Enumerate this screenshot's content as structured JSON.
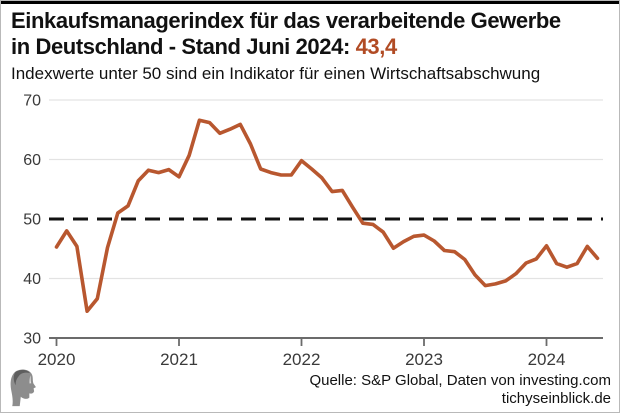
{
  "header": {
    "title_line1": "Einkaufsmanagerindex für das verarbeitende Gewerbe",
    "title_line2_prefix": "in Deutschland - Stand Juni 2024: ",
    "title_value": "43,4",
    "subtitle": "Indexwerte unter 50 sind ein Indikator für einen Wirtschaftsabschwung"
  },
  "footer": {
    "logo_icon": "classical-head-logo",
    "source_line1": "Quelle: S&P Global, Daten von investing.com",
    "source_line2": "tichyseinblick.de"
  },
  "colors": {
    "accent": "#b14b24",
    "line": "#b8572f",
    "grid": "#e3e3e3",
    "axis": "#6b6b6b",
    "tick_text": "#3a3a3a",
    "threshold": "#111111",
    "top_bar": "#000000"
  },
  "chart_data": {
    "type": "line",
    "title": "Einkaufsmanagerindex für das verarbeitende Gewerbe in Deutschland",
    "xlabel": "",
    "ylabel": "",
    "x_start_month": "2020-01",
    "x_end_month": "2024-06",
    "x_tick_labels": [
      "2020",
      "2021",
      "2022",
      "2023",
      "2024"
    ],
    "y_tick_labels": [
      30,
      40,
      50,
      60,
      70
    ],
    "ylim": [
      30,
      72
    ],
    "grid": true,
    "legend": false,
    "threshold": 50,
    "threshold_style": "black-dashed",
    "series": [
      {
        "name": "Einkaufsmanagerindex (PMI) verarbeitendes Gewerbe Deutschland",
        "values": [
          45.3,
          48.0,
          45.4,
          34.5,
          36.6,
          45.2,
          51.0,
          52.2,
          56.4,
          58.2,
          57.8,
          58.3,
          57.1,
          60.7,
          66.6,
          66.2,
          64.4,
          65.1,
          65.9,
          62.6,
          58.4,
          57.8,
          57.4,
          57.4,
          59.8,
          58.4,
          56.9,
          54.6,
          54.8,
          52.0,
          49.3,
          49.1,
          47.8,
          45.1,
          46.2,
          47.1,
          47.3,
          46.3,
          44.7,
          44.5,
          43.2,
          40.6,
          38.8,
          39.1,
          39.6,
          40.8,
          42.6,
          43.3,
          45.5,
          42.5,
          41.9,
          42.5,
          45.4,
          43.4
        ]
      }
    ]
  }
}
